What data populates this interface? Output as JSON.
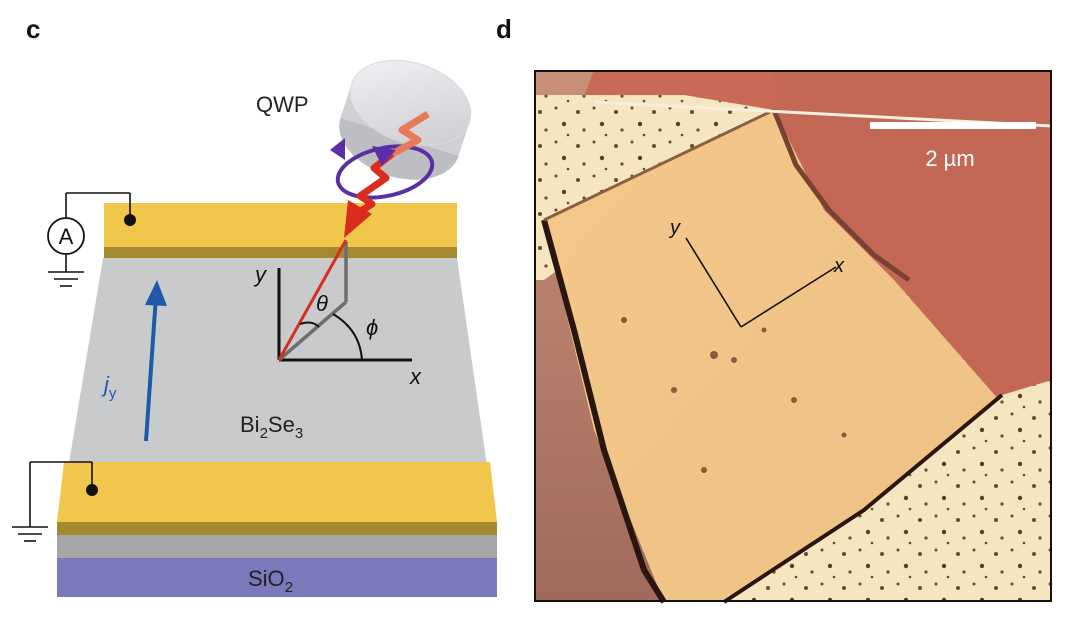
{
  "panels": {
    "c": {
      "label": "c",
      "qwp_label": "QWP",
      "ammeter_label": "A",
      "current_label_main": "j",
      "current_label_sub": "y",
      "material": {
        "base": "Bi",
        "sub1": "2",
        "mid": "Se",
        "sub2": "3"
      },
      "substrate": {
        "base": "SiO",
        "sub": "2"
      },
      "axes": {
        "x": "x",
        "y": "y",
        "theta": "θ",
        "phi": "ϕ"
      },
      "colors": {
        "film": "#c9cacc",
        "electrode": "#f0c74a",
        "electrode_edge": "#a48a2e",
        "substrate": "#7b78bb",
        "substrate_top": "#a4a4a6",
        "current_arrow": "#1f5aa8",
        "light_arrow": "#d92c1e"
      }
    },
    "d": {
      "label": "d",
      "scale_bar_label": "2 µm",
      "axes": {
        "x": "x",
        "y": "y"
      }
    }
  }
}
